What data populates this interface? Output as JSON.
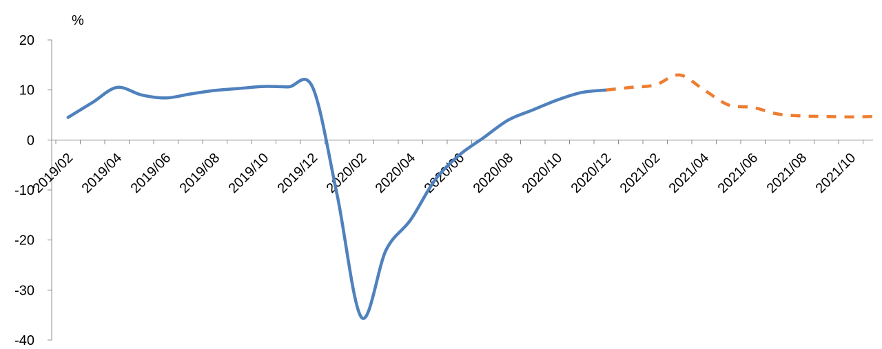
{
  "chart_data": {
    "type": "line",
    "ylabel": "%",
    "ylim": [
      -40,
      20
    ],
    "yticks": [
      "20",
      "10",
      "0",
      "-10",
      "-20",
      "-30",
      "-40"
    ],
    "xticks": [
      "2019/02",
      "2019/04",
      "2019/06",
      "2019/08",
      "2019/10",
      "2019/12",
      "2020/02",
      "2020/04",
      "2020/06",
      "2020/08",
      "2020/10",
      "2020/12",
      "2021/02",
      "2021/04",
      "2021/06",
      "2021/08",
      "2021/10"
    ],
    "x": [
      "2019/02",
      "2019/03",
      "2019/04",
      "2019/05",
      "2019/06",
      "2019/07",
      "2019/08",
      "2019/09",
      "2019/10",
      "2019/11",
      "2019/12",
      "2020/01",
      "2020/02",
      "2020/03",
      "2020/04",
      "2020/05",
      "2020/06",
      "2020/07",
      "2020/08",
      "2020/09",
      "2020/10",
      "2020/11",
      "2020/12",
      "2021/01",
      "2021/02",
      "2021/03",
      "2021/04",
      "2021/05",
      "2021/06",
      "2021/07",
      "2021/08",
      "2021/09",
      "2021/10",
      "2021/11"
    ],
    "series": [
      {
        "style": "solid",
        "color": "#4f81bd",
        "values": [
          4.5,
          7.5,
          10.5,
          9.0,
          8.4,
          9.2,
          9.9,
          10.3,
          10.7,
          10.6,
          10.5,
          -11.0,
          -35.5,
          -22.0,
          -16.0,
          -8.0,
          -3.0,
          0.5,
          4.0,
          6.0,
          8.0,
          9.5,
          10.0,
          null,
          null,
          null,
          null,
          null,
          null,
          null,
          null,
          null,
          null,
          null
        ]
      },
      {
        "style": "dashed",
        "color": "#ed7d31",
        "values": [
          null,
          null,
          null,
          null,
          null,
          null,
          null,
          null,
          null,
          null,
          null,
          null,
          null,
          null,
          null,
          null,
          null,
          null,
          null,
          null,
          null,
          null,
          10.0,
          10.5,
          11.0,
          13.0,
          10.0,
          7.0,
          6.5,
          5.2,
          4.8,
          4.7,
          4.6,
          4.7
        ]
      }
    ]
  }
}
